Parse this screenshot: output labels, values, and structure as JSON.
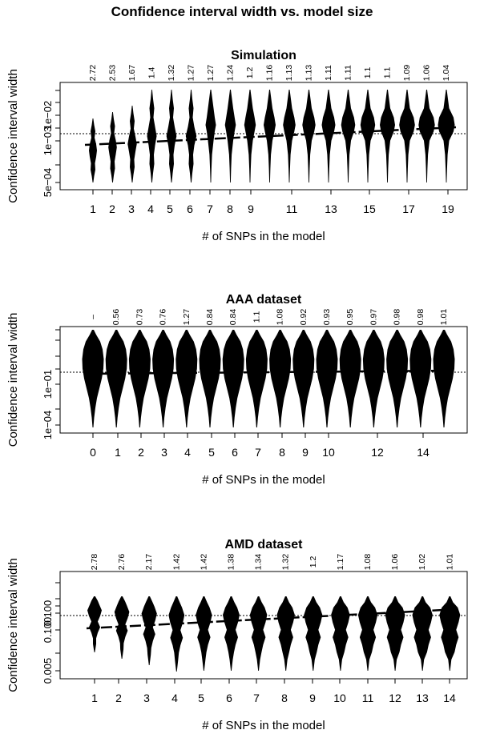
{
  "page_title": "Confidence interval width vs. model size",
  "chart_data": [
    {
      "type": "violin",
      "title": "Simulation",
      "ylabel": "Confidence interval width",
      "xlabel": "# of SNPs in the model",
      "y_scale": "log",
      "y_tick_labels": [
        "5e−04",
        "1e−03",
        "1e−02"
      ],
      "x_tick_labels": [
        "1",
        "2",
        "3",
        "4",
        "5",
        "6",
        "7",
        "8",
        "9",
        "11",
        "13",
        "15",
        "17",
        "19"
      ],
      "reference_line": "dotted horizontal",
      "categories": [
        "1",
        "2",
        "3",
        "4",
        "5",
        "6",
        "7",
        "8",
        "9",
        "10",
        "11",
        "12",
        "13",
        "14",
        "15",
        "16",
        "17",
        "18",
        "19"
      ],
      "top_labels": [
        "2.72",
        "2.53",
        "1.67",
        "1.4",
        "1.32",
        "1.27",
        "1.27",
        "1.24",
        "1.2",
        "1.16",
        "1.13",
        "1.13",
        "1.11",
        "1.11",
        "1.1",
        "1.1",
        "1.09",
        "1.06",
        "1.04"
      ],
      "median_trend": "increasing"
    },
    {
      "type": "violin",
      "title": "AAA dataset",
      "ylabel": "Confidence interval width",
      "xlabel": "# of SNPs in the model",
      "y_scale": "log",
      "y_tick_labels": [
        "1e−04",
        "1e−01"
      ],
      "x_tick_labels": [
        "0",
        "1",
        "2",
        "3",
        "4",
        "5",
        "6",
        "7",
        "8",
        "9",
        "10",
        "12",
        "14"
      ],
      "reference_line": "dotted horizontal",
      "categories": [
        "0",
        "1",
        "2",
        "3",
        "4",
        "5",
        "6",
        "7",
        "8",
        "9",
        "10",
        "11",
        "12",
        "13",
        "14",
        "15"
      ],
      "top_labels": [
        "–",
        "0.56",
        "0.73",
        "0.76",
        "1.27",
        "0.84",
        "0.84",
        "1.1",
        "1.08",
        "0.92",
        "0.93",
        "0.95",
        "0.97",
        "0.98",
        "0.98",
        "1.01"
      ],
      "median_trend": "increasing"
    },
    {
      "type": "violin",
      "title": "AMD dataset",
      "ylabel": "Confidence interval width",
      "xlabel": "# of SNPs in the model",
      "y_scale": "log",
      "y_tick_labels": [
        "0.005",
        "0.100",
        "0.100"
      ],
      "x_tick_labels": [
        "1",
        "2",
        "3",
        "4",
        "5",
        "6",
        "7",
        "8",
        "9",
        "10",
        "11",
        "12",
        "13",
        "14"
      ],
      "reference_line": "dotted horizontal",
      "categories": [
        "1",
        "2",
        "3",
        "4",
        "5",
        "6",
        "7",
        "8",
        "9",
        "10",
        "11",
        "12",
        "13",
        "14"
      ],
      "top_labels": [
        "2.78",
        "2.76",
        "2.17",
        "1.42",
        "1.42",
        "1.38",
        "1.34",
        "1.32",
        "1.2",
        "1.17",
        "1.08",
        "1.06",
        "1.02",
        "1.01"
      ],
      "median_trend": "increasing"
    }
  ]
}
